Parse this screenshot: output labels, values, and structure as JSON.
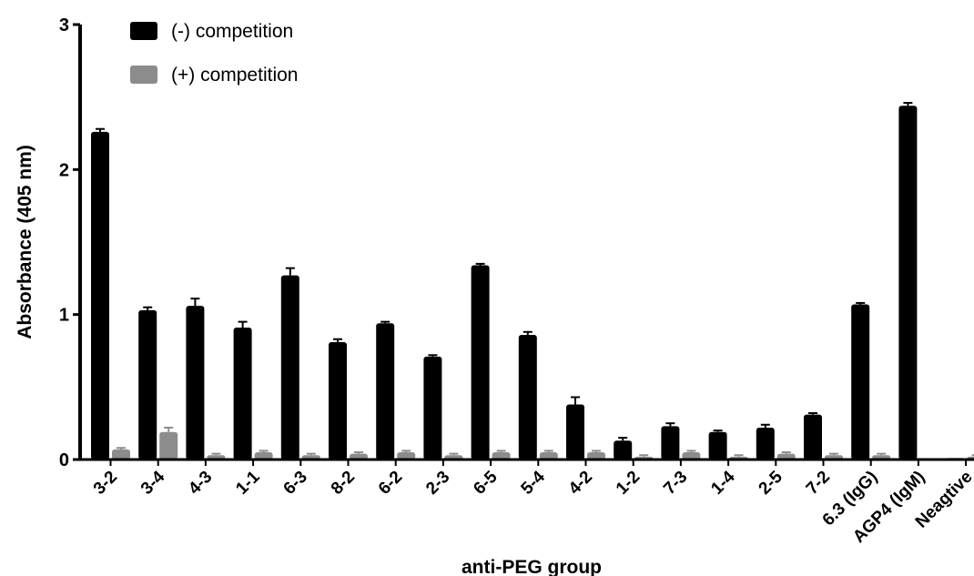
{
  "chart_data": {
    "type": "bar",
    "title": "",
    "xlabel": "anti-PEG group",
    "ylabel": "Absorbance (405 nm)",
    "ylim": [
      0,
      3
    ],
    "yticks": [
      "0",
      "1",
      "2",
      "3"
    ],
    "grid": false,
    "legend_position": "top-left",
    "categories": [
      "3-2",
      "3-4",
      "4-3",
      "1-1",
      "6-3",
      "8-2",
      "6-2",
      "2-3",
      "6-5",
      "5-4",
      "4-2",
      "1-2",
      "7-3",
      "1-4",
      "2-5",
      "7-2",
      "6.3 (IgG)",
      "AGP4 (IgM)",
      "Neagtive"
    ],
    "series": [
      {
        "name": "(-) competition",
        "color": "#000000",
        "values": [
          2.26,
          1.03,
          1.06,
          0.91,
          1.27,
          0.81,
          0.94,
          0.71,
          1.34,
          0.86,
          0.38,
          0.13,
          0.23,
          0.19,
          0.22,
          0.31,
          1.07,
          2.44,
          0.01
        ],
        "errors": [
          0.02,
          0.02,
          0.05,
          0.04,
          0.05,
          0.02,
          0.01,
          0.01,
          0.01,
          0.02,
          0.05,
          0.02,
          0.02,
          0.01,
          0.02,
          0.01,
          0.01,
          0.02,
          0.0
        ]
      },
      {
        "name": "(+) competition",
        "color": "#8c8c8c",
        "values": [
          0.07,
          0.19,
          0.03,
          0.05,
          0.03,
          0.04,
          0.05,
          0.03,
          0.05,
          0.05,
          0.05,
          0.02,
          0.05,
          0.02,
          0.04,
          0.03,
          0.03,
          0.0,
          0.02
        ],
        "errors": [
          0.01,
          0.03,
          0.01,
          0.01,
          0.01,
          0.01,
          0.01,
          0.01,
          0.01,
          0.01,
          0.01,
          0.01,
          0.01,
          0.01,
          0.01,
          0.01,
          0.01,
          0.0,
          0.01
        ]
      }
    ]
  }
}
